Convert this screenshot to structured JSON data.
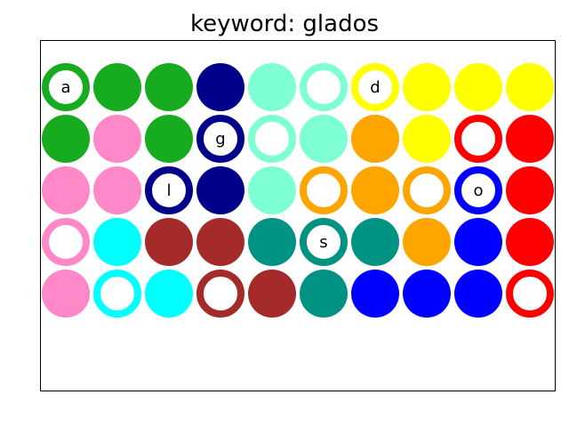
{
  "title": "keyword: glados",
  "colors": {
    "green": "#17ab1f",
    "navy": "#00008b",
    "aqua": "#7fffd4",
    "yellow": "#ffff00",
    "pink": "#ff88c8",
    "orange": "#ffa500",
    "red": "#ff0000",
    "cyan": "#00ffff",
    "brown": "#a52a2a",
    "teal": "#009384",
    "blue": "#0000ff"
  },
  "rows": [
    [
      {
        "color": "green",
        "style": "ring",
        "letter": "a"
      },
      {
        "color": "green",
        "style": "solid",
        "letter": ""
      },
      {
        "color": "green",
        "style": "solid",
        "letter": ""
      },
      {
        "color": "navy",
        "style": "solid",
        "letter": ""
      },
      {
        "color": "aqua",
        "style": "solid",
        "letter": ""
      },
      {
        "color": "aqua",
        "style": "ring",
        "letter": ""
      },
      {
        "color": "yellow",
        "style": "ring",
        "letter": "d"
      },
      {
        "color": "yellow",
        "style": "solid",
        "letter": ""
      },
      {
        "color": "yellow",
        "style": "solid",
        "letter": ""
      },
      {
        "color": "yellow",
        "style": "solid",
        "letter": ""
      }
    ],
    [
      {
        "color": "green",
        "style": "solid",
        "letter": ""
      },
      {
        "color": "pink",
        "style": "solid",
        "letter": ""
      },
      {
        "color": "green",
        "style": "solid",
        "letter": ""
      },
      {
        "color": "navy",
        "style": "ring",
        "letter": "g"
      },
      {
        "color": "aqua",
        "style": "ring",
        "letter": ""
      },
      {
        "color": "aqua",
        "style": "solid",
        "letter": ""
      },
      {
        "color": "orange",
        "style": "solid",
        "letter": ""
      },
      {
        "color": "yellow",
        "style": "solid",
        "letter": ""
      },
      {
        "color": "red",
        "style": "ring",
        "letter": ""
      },
      {
        "color": "red",
        "style": "solid",
        "letter": ""
      }
    ],
    [
      {
        "color": "pink",
        "style": "solid",
        "letter": ""
      },
      {
        "color": "pink",
        "style": "solid",
        "letter": ""
      },
      {
        "color": "navy",
        "style": "ring",
        "letter": "l"
      },
      {
        "color": "navy",
        "style": "solid",
        "letter": ""
      },
      {
        "color": "aqua",
        "style": "solid",
        "letter": ""
      },
      {
        "color": "orange",
        "style": "ring",
        "letter": ""
      },
      {
        "color": "orange",
        "style": "solid",
        "letter": ""
      },
      {
        "color": "orange",
        "style": "ring",
        "letter": ""
      },
      {
        "color": "blue",
        "style": "ring",
        "letter": "o"
      },
      {
        "color": "red",
        "style": "solid",
        "letter": ""
      }
    ],
    [
      {
        "color": "pink",
        "style": "ring",
        "letter": ""
      },
      {
        "color": "cyan",
        "style": "solid",
        "letter": ""
      },
      {
        "color": "brown",
        "style": "solid",
        "letter": ""
      },
      {
        "color": "brown",
        "style": "solid",
        "letter": ""
      },
      {
        "color": "teal",
        "style": "solid",
        "letter": ""
      },
      {
        "color": "teal",
        "style": "ring",
        "letter": "s"
      },
      {
        "color": "teal",
        "style": "solid",
        "letter": ""
      },
      {
        "color": "orange",
        "style": "solid",
        "letter": ""
      },
      {
        "color": "blue",
        "style": "solid",
        "letter": ""
      },
      {
        "color": "red",
        "style": "solid",
        "letter": ""
      }
    ],
    [
      {
        "color": "pink",
        "style": "solid",
        "letter": ""
      },
      {
        "color": "cyan",
        "style": "ring",
        "letter": ""
      },
      {
        "color": "cyan",
        "style": "solid",
        "letter": ""
      },
      {
        "color": "brown",
        "style": "ring",
        "letter": ""
      },
      {
        "color": "brown",
        "style": "solid",
        "letter": ""
      },
      {
        "color": "teal",
        "style": "solid",
        "letter": ""
      },
      {
        "color": "blue",
        "style": "solid",
        "letter": ""
      },
      {
        "color": "blue",
        "style": "solid",
        "letter": ""
      },
      {
        "color": "blue",
        "style": "solid",
        "letter": ""
      },
      {
        "color": "red",
        "style": "ring",
        "letter": ""
      }
    ]
  ]
}
